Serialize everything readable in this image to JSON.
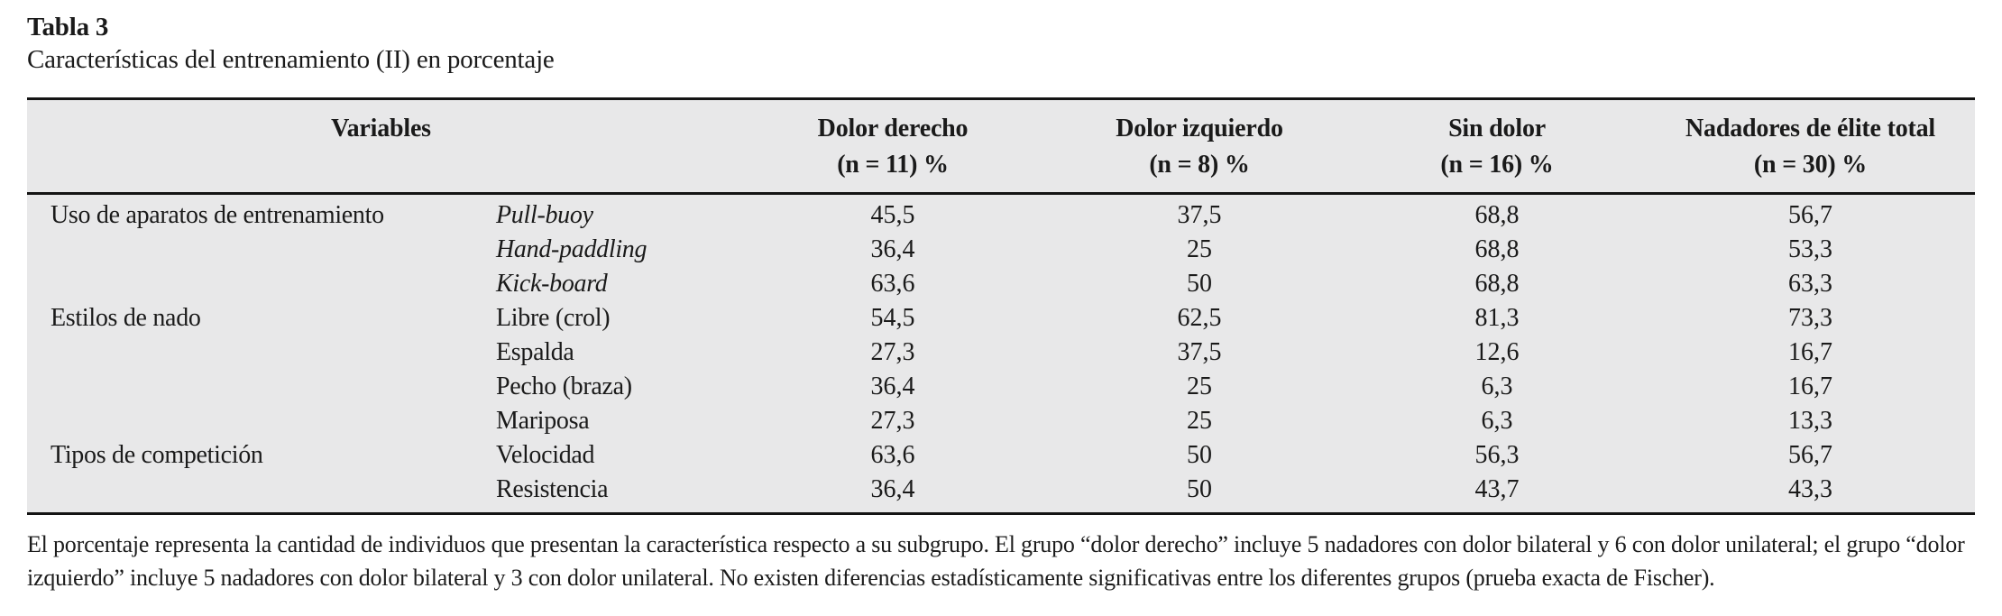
{
  "caption": {
    "label": "Tabla 3",
    "title": "Características del entrenamiento (II) en porcentaje"
  },
  "table": {
    "header": {
      "variables": "Variables",
      "columns": [
        {
          "line1": "Dolor derecho",
          "line2": "(n = 11) %"
        },
        {
          "line1": "Dolor izquierdo",
          "line2": "(n = 8) %"
        },
        {
          "line1": "Sin dolor",
          "line2": "(n = 16) %"
        },
        {
          "line1": "Nadadores de élite total",
          "line2": "(n = 30) %"
        }
      ]
    },
    "rows": [
      {
        "category": "Uso de aparatos de entrenamiento",
        "item": "Pull-buoy",
        "italic": true,
        "values": [
          "45,5",
          "37,5",
          "68,8",
          "56,7"
        ]
      },
      {
        "category": "",
        "item": "Hand-paddling",
        "italic": true,
        "values": [
          "36,4",
          "25",
          "68,8",
          "53,3"
        ]
      },
      {
        "category": "",
        "item": "Kick-board",
        "italic": true,
        "values": [
          "63,6",
          "50",
          "68,8",
          "63,3"
        ]
      },
      {
        "category": "Estilos de nado",
        "item": "Libre (crol)",
        "italic": false,
        "values": [
          "54,5",
          "62,5",
          "81,3",
          "73,3"
        ]
      },
      {
        "category": "",
        "item": "Espalda",
        "italic": false,
        "values": [
          "27,3",
          "37,5",
          "12,6",
          "16,7"
        ]
      },
      {
        "category": "",
        "item": "Pecho (braza)",
        "italic": false,
        "values": [
          "36,4",
          "25",
          "6,3",
          "16,7"
        ]
      },
      {
        "category": "",
        "item": "Mariposa",
        "italic": false,
        "values": [
          "27,3",
          "25",
          "6,3",
          "13,3"
        ]
      },
      {
        "category": "Tipos de competición",
        "item": "Velocidad",
        "italic": false,
        "values": [
          "63,6",
          "50",
          "56,3",
          "56,7"
        ]
      },
      {
        "category": "",
        "item": "Resistencia",
        "italic": false,
        "values": [
          "36,4",
          "50",
          "43,7",
          "43,3"
        ]
      }
    ]
  },
  "footnote": "El porcentaje representa la cantidad de individuos que presentan la característica respecto a su subgrupo. El grupo “dolor derecho” incluye 5 nadadores con dolor bilateral y 6 con dolor unilateral; el grupo “dolor izquierdo” incluye 5 nadadores con dolor bilateral y 3 con dolor unilateral. No existen diferencias estadísticamente significativas entre los diferentes grupos (prueba exacta de Fischer).",
  "colors": {
    "table_background": "#e8e8e9",
    "rule": "#141414",
    "text": "#1a1a1a"
  }
}
